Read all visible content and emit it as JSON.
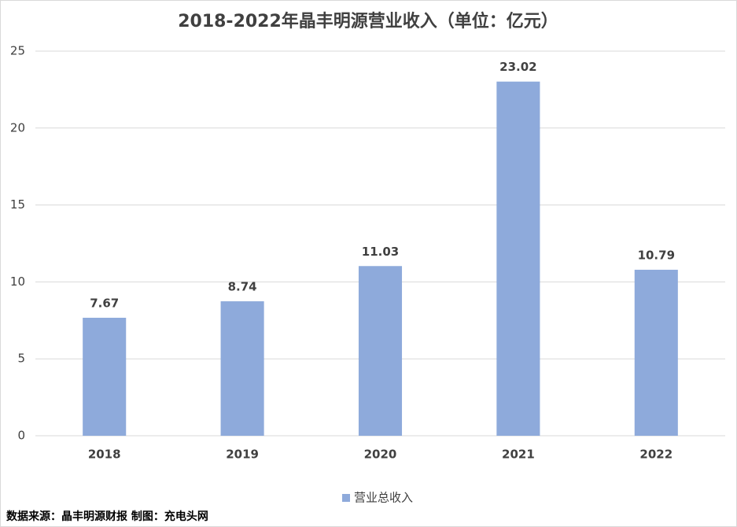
{
  "chart_data": {
    "type": "bar",
    "title": "2018-2022年晶丰明源营业收入（单位：亿元）",
    "categories": [
      "2018",
      "2019",
      "2020",
      "2021",
      "2022"
    ],
    "series": [
      {
        "name": "营业总收入",
        "color": "#8eaadb",
        "values": [
          7.67,
          8.74,
          11.03,
          23.02,
          10.79
        ]
      }
    ],
    "ylim": [
      0,
      25
    ],
    "yticks": [
      0,
      5,
      10,
      15,
      20,
      25
    ],
    "grid": true,
    "legend": "bottom",
    "note": "数据来源：晶丰明源财报  制图：充电头网"
  }
}
